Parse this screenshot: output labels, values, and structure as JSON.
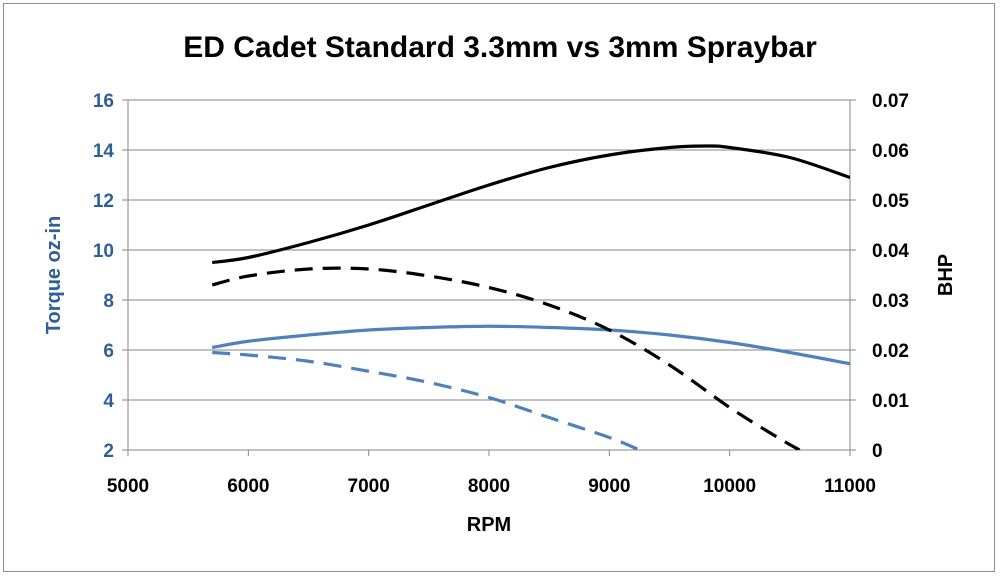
{
  "chart_data": {
    "type": "line",
    "title": "ED Cadet Standard 3.3mm vs 3mm Spraybar",
    "xlabel": "RPM",
    "ylabel": "Torque oz-in",
    "y2label": "BHP",
    "xlim": [
      5000,
      11000
    ],
    "ylim": [
      2,
      16
    ],
    "y2lim": [
      0,
      0.07
    ],
    "x_ticks": [
      "5000",
      "6000",
      "7000",
      "8000",
      "9000",
      "10000",
      "11000"
    ],
    "y_ticks": [
      "2",
      "4",
      "6",
      "8",
      "10",
      "12",
      "14",
      "16"
    ],
    "y2_ticks": [
      "0",
      "0.01",
      "0.02",
      "0.03",
      "0.04",
      "0.05",
      "0.06",
      "0.07"
    ],
    "grid": "horizontal",
    "legend": "none",
    "series": [
      {
        "axis": "y",
        "style": "solid",
        "color": "#4f81bd",
        "x": [
          5700,
          6000,
          6500,
          7000,
          7500,
          8000,
          8500,
          9000,
          9500,
          10000,
          10500,
          11000
        ],
        "y": [
          6.1,
          6.35,
          6.6,
          6.8,
          6.9,
          6.95,
          6.9,
          6.8,
          6.6,
          6.3,
          5.9,
          5.45
        ]
      },
      {
        "axis": "y",
        "style": "dashed",
        "color": "#4f81bd",
        "x": [
          5700,
          6000,
          6500,
          7000,
          7500,
          8000,
          8500,
          9000,
          9250
        ],
        "y": [
          5.9,
          5.8,
          5.55,
          5.15,
          4.7,
          4.1,
          3.3,
          2.5,
          2.0
        ]
      },
      {
        "axis": "y2",
        "style": "solid",
        "color": "#000000",
        "x": [
          5700,
          6000,
          6500,
          7000,
          7500,
          8000,
          8500,
          9000,
          9500,
          9800,
          10000,
          10500,
          11000
        ],
        "y": [
          0.0375,
          0.0385,
          0.0415,
          0.045,
          0.049,
          0.053,
          0.0565,
          0.059,
          0.0605,
          0.0608,
          0.0605,
          0.0585,
          0.0545
        ]
      },
      {
        "axis": "y2",
        "style": "dashed",
        "color": "#000000",
        "x": [
          5700,
          6000,
          6500,
          7000,
          7500,
          8000,
          8500,
          9000,
          9500,
          10000,
          10400,
          10580
        ],
        "y": [
          0.033,
          0.0348,
          0.0362,
          0.0362,
          0.0348,
          0.0325,
          0.029,
          0.024,
          0.017,
          0.0085,
          0.0025,
          0.0
        ]
      }
    ],
    "colors": {
      "axis_primary": "#2f5f98",
      "axis_secondary": "#000000",
      "grid": "#868686",
      "frame": "#8c8c8c"
    }
  }
}
